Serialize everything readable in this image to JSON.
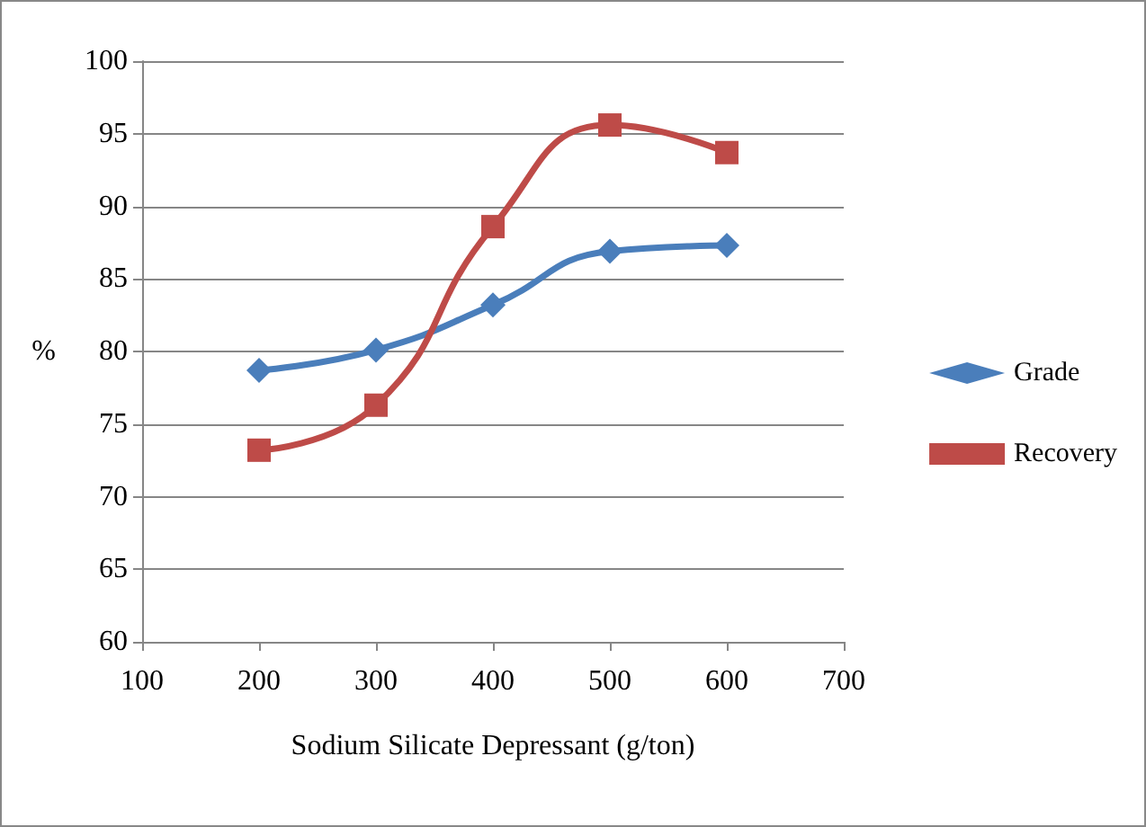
{
  "chart_data": {
    "type": "line",
    "xlabel": "Sodium Silicate Depressant (g/ton)",
    "ylabel": "%",
    "x": [
      200,
      300,
      400,
      500,
      600
    ],
    "series": [
      {
        "name": "Grade",
        "color": "#4a7ebb",
        "marker": "diamond",
        "values": [
          78.7,
          80.1,
          83.2,
          86.9,
          87.3
        ]
      },
      {
        "name": "Recovery",
        "color": "#be4b48",
        "marker": "square",
        "values": [
          73.2,
          76.3,
          88.6,
          95.6,
          93.7
        ]
      }
    ],
    "xlim": [
      100,
      700
    ],
    "xticks": [
      100,
      200,
      300,
      400,
      500,
      600,
      700
    ],
    "ylim": [
      60,
      100
    ],
    "yticks": [
      60,
      65,
      70,
      75,
      80,
      85,
      90,
      95,
      100
    ],
    "grid": "y",
    "legend": "right"
  }
}
